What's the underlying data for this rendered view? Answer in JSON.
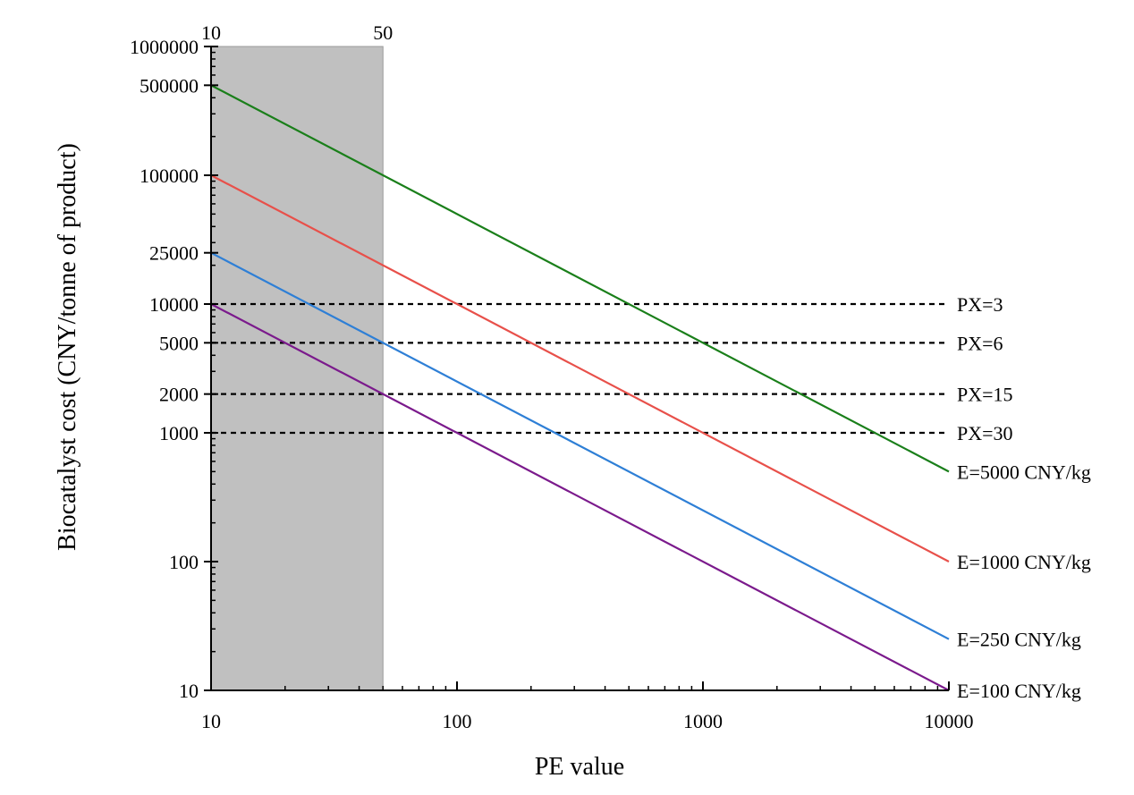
{
  "chart_data": {
    "type": "line",
    "xlabel": "PE value",
    "ylabel": "Biocatalyst cost (CNY/tonne of product)",
    "x_scale": "log",
    "y_scale": "log",
    "xlim": [
      10,
      10000
    ],
    "ylim": [
      10,
      1000000
    ],
    "x_ticks": [
      "10",
      "100",
      "1000",
      "10000"
    ],
    "y_ticks": [
      "10",
      "100",
      "1000",
      "2000",
      "5000",
      "10000",
      "25000",
      "100000",
      "500000",
      "1000000"
    ],
    "top_axis_ticks": [
      "10",
      "50"
    ],
    "shaded_region": {
      "x_from": 10,
      "x_to": 50,
      "color": "#c0c0c0"
    },
    "series": [
      {
        "name": "E=5000 CNY/kg",
        "color": "#1a7f1a",
        "points": [
          [
            10,
            500000
          ],
          [
            10000,
            500
          ]
        ]
      },
      {
        "name": "E=1000 CNY/kg",
        "color": "#e8504a",
        "points": [
          [
            10,
            100000
          ],
          [
            10000,
            100
          ]
        ]
      },
      {
        "name": "E=250 CNY/kg",
        "color": "#2e7fd6",
        "points": [
          [
            10,
            25000
          ],
          [
            10000,
            25
          ]
        ]
      },
      {
        "name": "E=100 CNY/kg",
        "color": "#7b1a8c",
        "points": [
          [
            10,
            10000
          ],
          [
            10000,
            10
          ]
        ]
      }
    ],
    "reference_lines": [
      {
        "name": "PX=3",
        "y": 10000
      },
      {
        "name": "PX=6",
        "y": 5000
      },
      {
        "name": "PX=15",
        "y": 2000
      },
      {
        "name": "PX=30",
        "y": 1000
      }
    ],
    "grid": false
  }
}
